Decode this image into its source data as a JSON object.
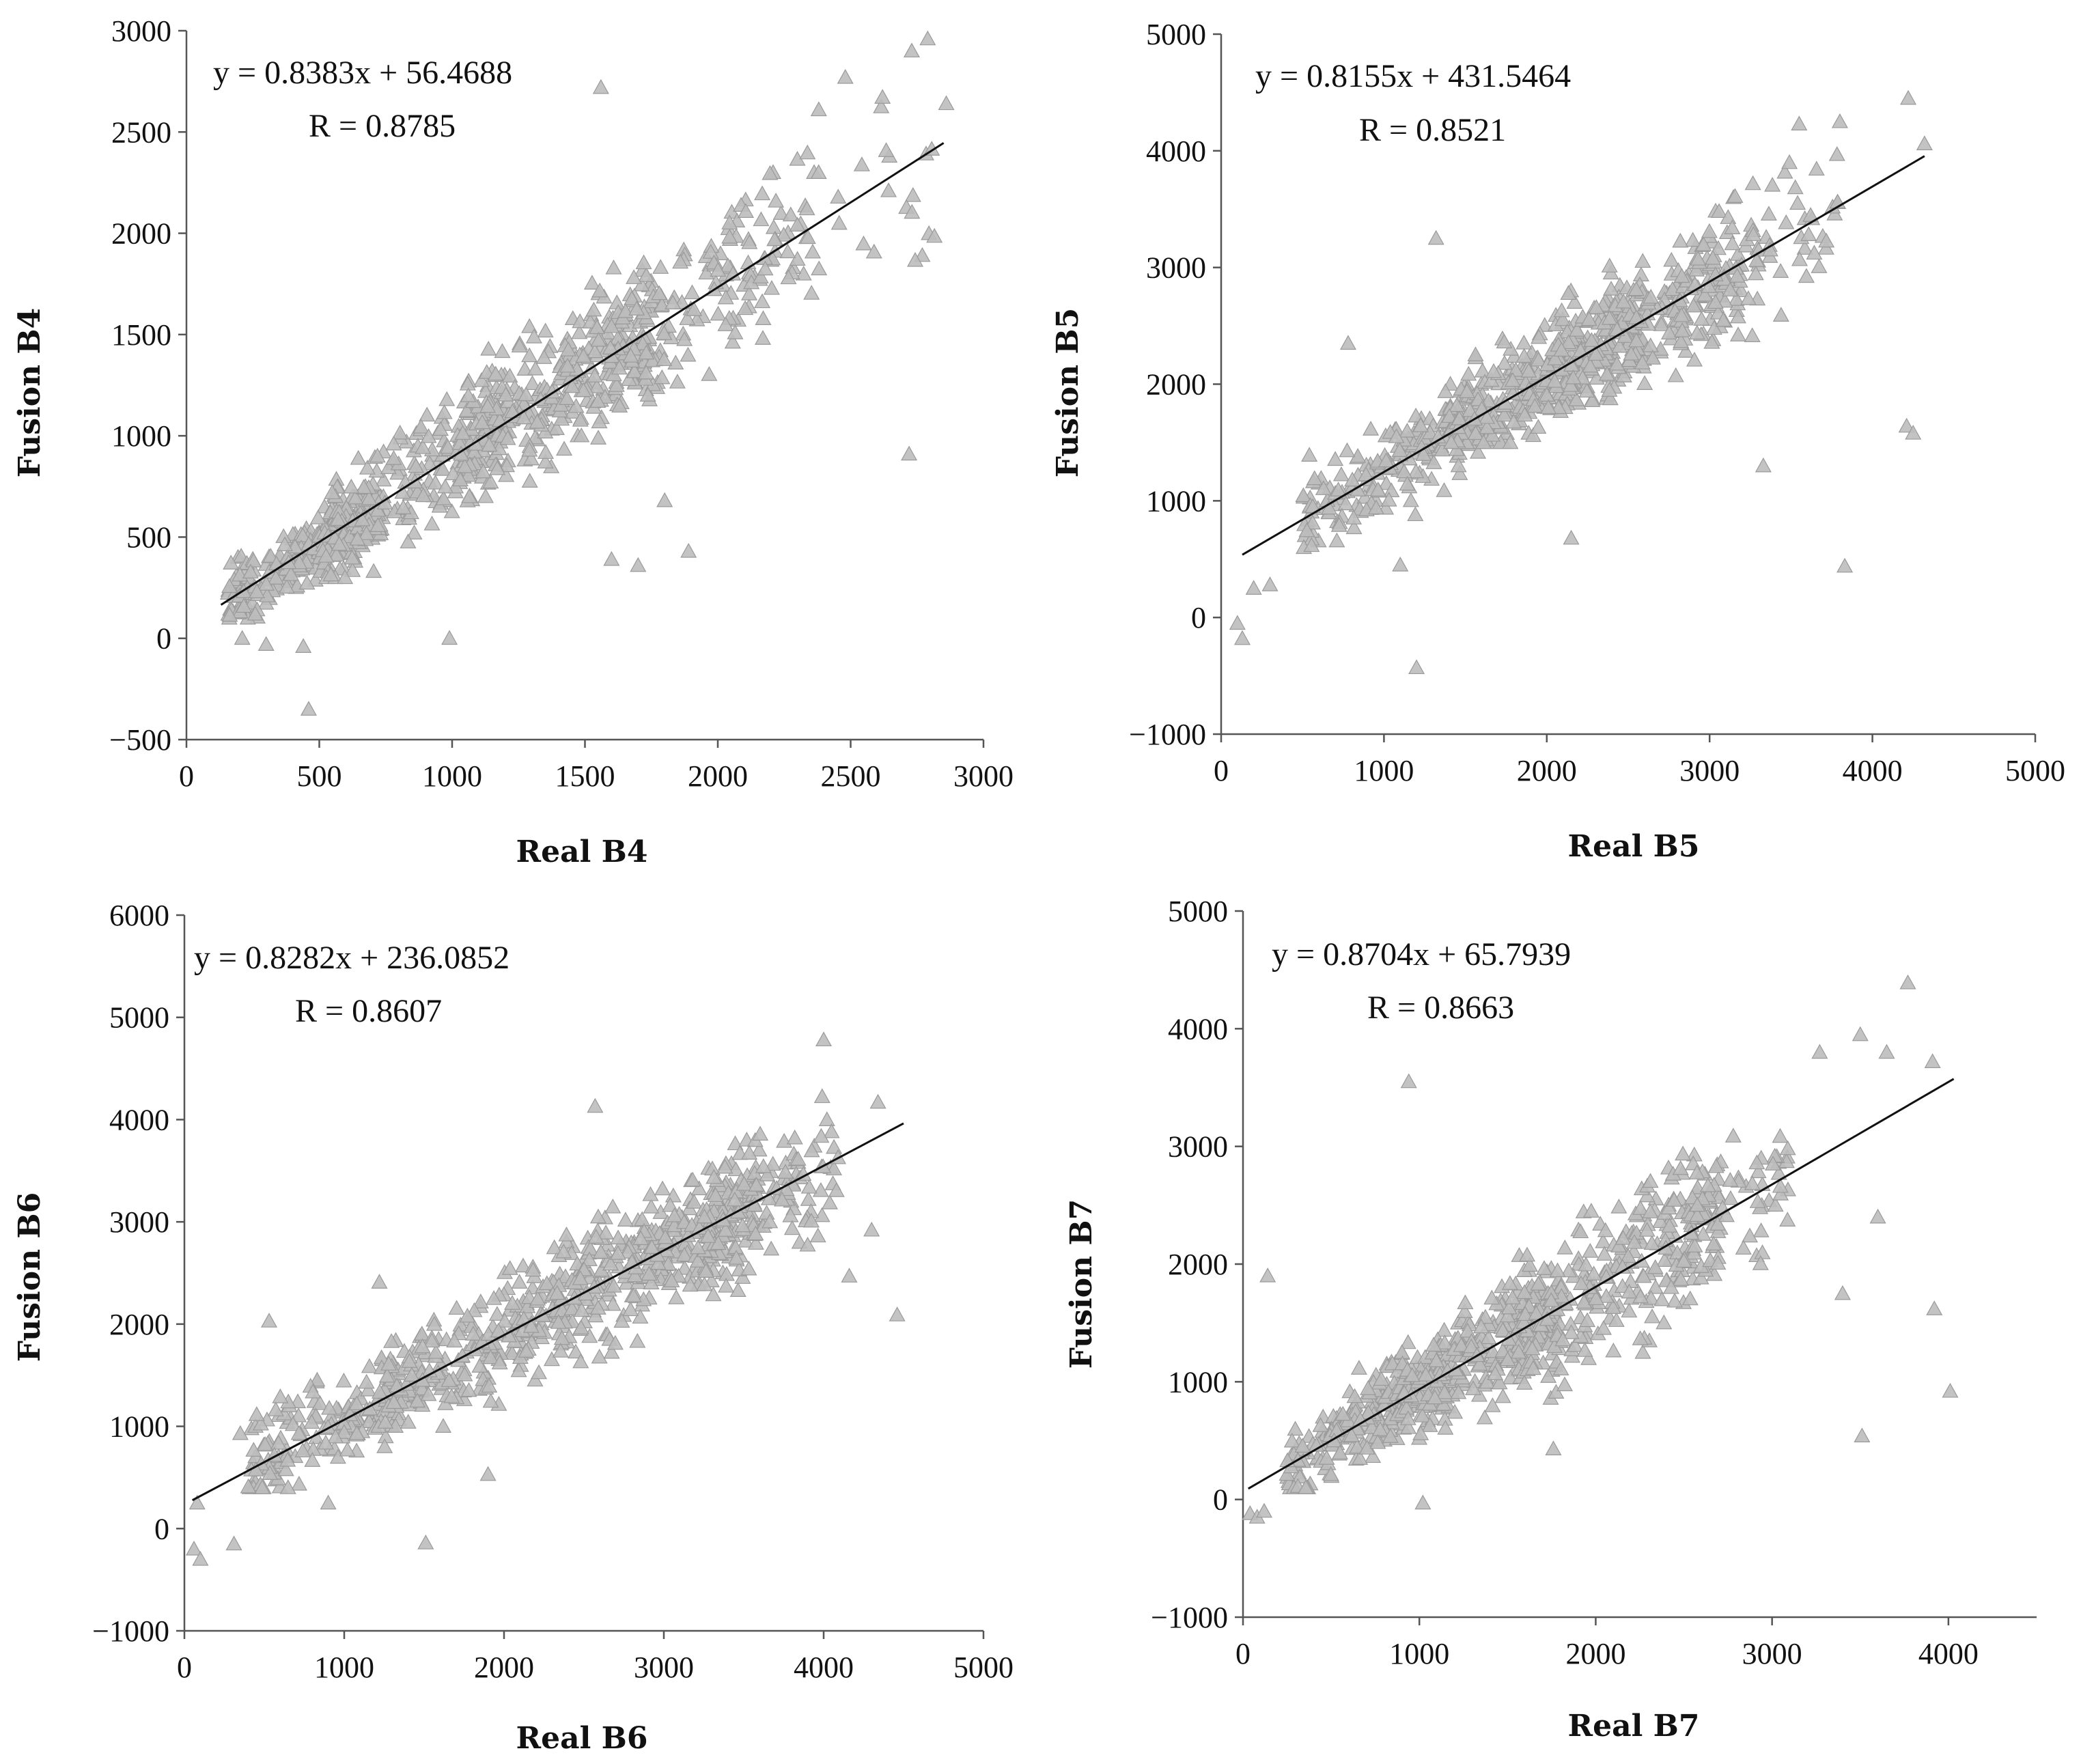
{
  "chart_data": [
    {
      "type": "scatter",
      "title": "",
      "xlabel": "Real B4",
      "ylabel": "Fusion B4",
      "xlim": [
        0,
        3000
      ],
      "ylim": [
        -500,
        3000
      ],
      "xticks": [
        0,
        500,
        1000,
        1500,
        2000,
        2500,
        3000
      ],
      "yticks": [
        -500,
        0,
        500,
        1000,
        1500,
        2000,
        2500,
        3000
      ],
      "equation": "y = 0.8383x + 56.4688",
      "r_label": "R = 0.8785",
      "slope": 0.8383,
      "intercept": 56.4688,
      "line_x": [
        130,
        2850
      ],
      "marker": "triangle",
      "marker_color": "#bdbdbd",
      "points": {
        "clusters": [
          {
            "x": [
              150,
              750
            ],
            "y": [
              100,
              700
            ],
            "n": 260
          },
          {
            "x": [
              500,
              1200
            ],
            "y": [
              300,
              1300
            ],
            "n": 220
          },
          {
            "x": [
              1000,
              1800
            ],
            "y": [
              700,
              1900
            ],
            "n": 280
          },
          {
            "x": [
              1400,
              2400
            ],
            "y": [
              1000,
              2300
            ],
            "n": 170
          },
          {
            "x": [
              2000,
              2850
            ],
            "y": [
              1100,
              2800
            ],
            "n": 40
          }
        ],
        "outliers": [
          [
            460,
            -350
          ],
          [
            1560,
            2720
          ],
          [
            2790,
            2960
          ],
          [
            2730,
            2900
          ],
          [
            2860,
            2640
          ],
          [
            2720,
            910
          ],
          [
            990,
            0
          ],
          [
            440,
            -40
          ],
          [
            300,
            -30
          ],
          [
            1600,
            390
          ],
          [
            1700,
            360
          ],
          [
            1890,
            430
          ],
          [
            1800,
            680
          ],
          [
            210,
            0
          ],
          [
            2480,
            2770
          ],
          [
            2380,
            2610
          ]
        ]
      }
    },
    {
      "type": "scatter",
      "title": "",
      "xlabel": "Real B5",
      "ylabel": "Fusion B5",
      "xlim": [
        0,
        5000
      ],
      "ylim": [
        -1000,
        5000
      ],
      "xticks": [
        0,
        1000,
        2000,
        3000,
        4000,
        5000
      ],
      "yticks": [
        -1000,
        0,
        1000,
        2000,
        3000,
        4000,
        5000
      ],
      "equation": "y = 0.8155x + 431.5464",
      "r_label": "R = 0.8521",
      "slope": 0.8155,
      "intercept": 431.5464,
      "line_x": [
        130,
        4320
      ],
      "marker": "triangle",
      "marker_color": "#bdbdbd",
      "points": {
        "clusters": [
          {
            "x": [
              500,
              1600
            ],
            "y": [
              600,
              2000
            ],
            "n": 200
          },
          {
            "x": [
              1400,
              2600
            ],
            "y": [
              1500,
              3100
            ],
            "n": 330
          },
          {
            "x": [
              2000,
              3200
            ],
            "y": [
              1800,
              3600
            ],
            "n": 240
          },
          {
            "x": [
              2800,
              3800
            ],
            "y": [
              2000,
              4000
            ],
            "n": 80
          }
        ],
        "outliers": [
          [
            100,
            -50
          ],
          [
            130,
            -180
          ],
          [
            1200,
            -430
          ],
          [
            3830,
            440
          ],
          [
            4210,
            1640
          ],
          [
            4250,
            1580
          ],
          [
            4220,
            4450
          ],
          [
            4320,
            4060
          ],
          [
            3800,
            4250
          ],
          [
            3330,
            1300
          ],
          [
            1320,
            3250
          ],
          [
            780,
            2350
          ],
          [
            1100,
            450
          ],
          [
            2150,
            680
          ],
          [
            3550,
            4230
          ],
          [
            200,
            250
          ],
          [
            300,
            280
          ]
        ]
      }
    },
    {
      "type": "scatter",
      "title": "",
      "xlabel": "Real B6",
      "ylabel": "Fusion B6",
      "xlim": [
        0,
        5000
      ],
      "ylim": [
        -1000,
        6000
      ],
      "xticks": [
        0,
        1000,
        2000,
        3000,
        4000,
        5000
      ],
      "yticks": [
        -1000,
        0,
        1000,
        2000,
        3000,
        4000,
        5000,
        6000
      ],
      "equation": "y = 0.8282x + 236.0852",
      "r_label": "R = 0.8607",
      "slope": 0.8282,
      "intercept": 236.0852,
      "line_x": [
        50,
        4500
      ],
      "marker": "triangle",
      "marker_color": "#bdbdbd",
      "points": {
        "clusters": [
          {
            "x": [
              400,
              1500
            ],
            "y": [
              400,
              2000
            ],
            "n": 170
          },
          {
            "x": [
              1200,
              2400
            ],
            "y": [
              1000,
              2800
            ],
            "n": 230
          },
          {
            "x": [
              2300,
              3600
            ],
            "y": [
              1600,
              3800
            ],
            "n": 340
          },
          {
            "x": [
              3200,
              4100
            ],
            "y": [
              2300,
              4500
            ],
            "n": 110
          }
        ],
        "outliers": [
          [
            60,
            -200
          ],
          [
            100,
            -300
          ],
          [
            80,
            250
          ],
          [
            310,
            -150
          ],
          [
            1510,
            -140
          ],
          [
            1900,
            530
          ],
          [
            2570,
            4130
          ],
          [
            4000,
            4780
          ],
          [
            4340,
            4170
          ],
          [
            4460,
            2090
          ],
          [
            530,
            2030
          ],
          [
            1220,
            2410
          ],
          [
            900,
            250
          ],
          [
            4160,
            2470
          ],
          [
            4300,
            2920
          ],
          [
            350,
            930
          ]
        ]
      }
    },
    {
      "type": "scatter",
      "title": "",
      "xlabel": "Real B7",
      "ylabel": "Fusion B7",
      "xlim": [
        0,
        4500
      ],
      "ylim": [
        -1000,
        5000
      ],
      "xticks": [
        0,
        1000,
        2000,
        3000,
        4000
      ],
      "yticks": [
        -1000,
        0,
        1000,
        2000,
        3000,
        4000,
        5000
      ],
      "equation": "y = 0.8704x + 65.7939",
      "r_label": "R = 0.8663",
      "slope": 0.8704,
      "intercept": 65.7939,
      "line_x": [
        30,
        4030
      ],
      "marker": "triangle",
      "marker_color": "#bdbdbd",
      "points": {
        "clusters": [
          {
            "x": [
              250,
              1100
            ],
            "y": [
              100,
              1400
            ],
            "n": 230
          },
          {
            "x": [
              900,
              1800
            ],
            "y": [
              500,
              2000
            ],
            "n": 270
          },
          {
            "x": [
              1500,
              2700
            ],
            "y": [
              800,
              3000
            ],
            "n": 290
          },
          {
            "x": [
              2400,
              3100
            ],
            "y": [
              1400,
              3500
            ],
            "n": 70
          }
        ],
        "outliers": [
          [
            40,
            -120
          ],
          [
            80,
            -150
          ],
          [
            120,
            -100
          ],
          [
            140,
            1900
          ],
          [
            940,
            3550
          ],
          [
            1020,
            -30
          ],
          [
            3770,
            4390
          ],
          [
            3510,
            540
          ],
          [
            4010,
            920
          ],
          [
            3920,
            1620
          ],
          [
            3600,
            2400
          ],
          [
            3270,
            3800
          ],
          [
            3650,
            3800
          ],
          [
            3400,
            1750
          ],
          [
            1760,
            430
          ],
          [
            3910,
            3720
          ],
          [
            3500,
            3950
          ]
        ]
      }
    }
  ]
}
